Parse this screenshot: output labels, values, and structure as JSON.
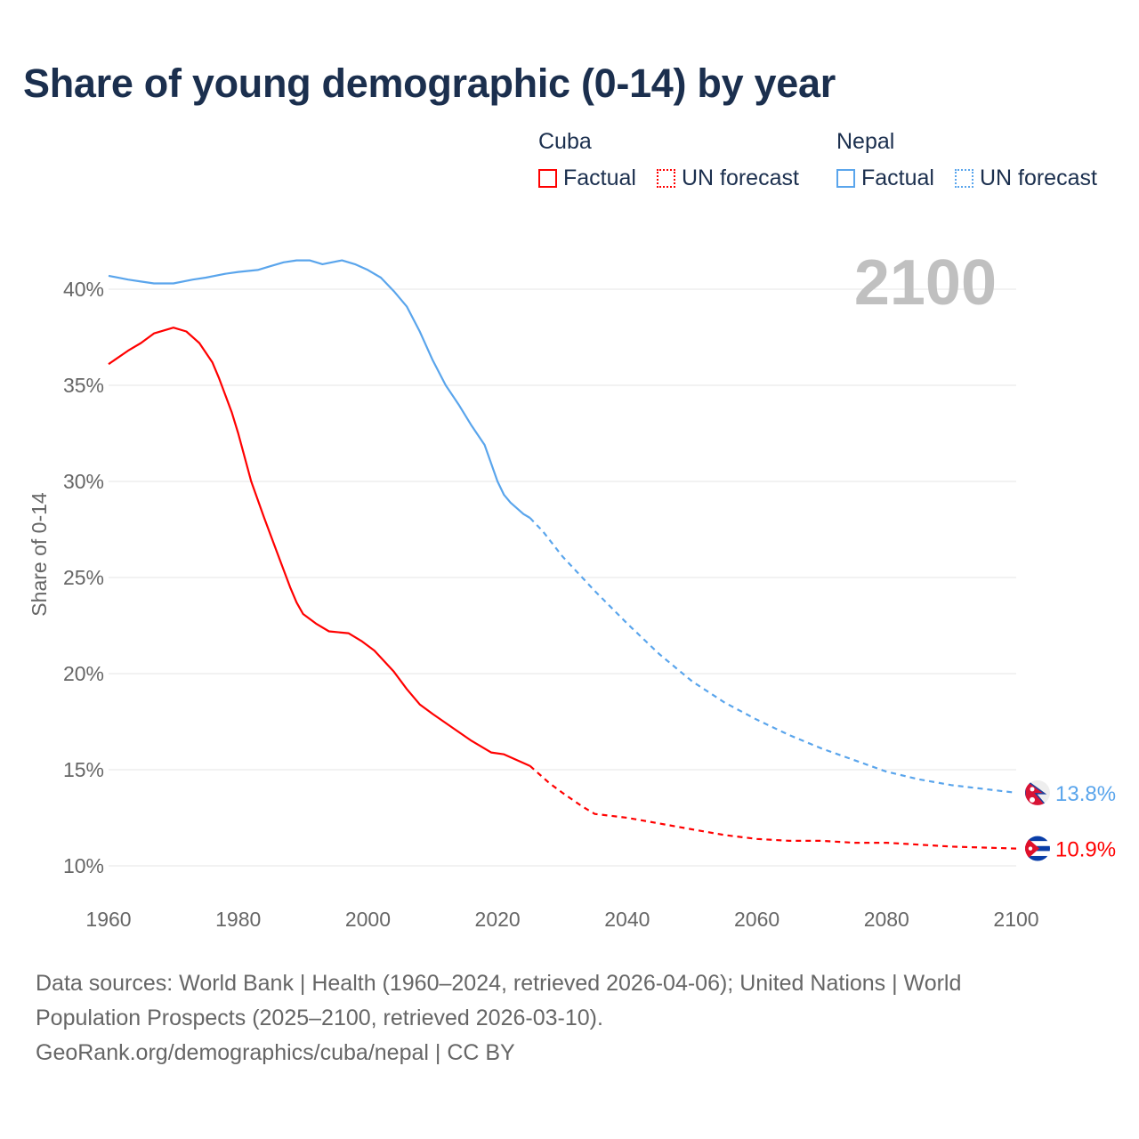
{
  "chart_data": {
    "type": "line",
    "title": "Share of young demographic (0-14) by year",
    "ylabel": "Share of 0-14",
    "xlabel": "",
    "xlim": [
      1960,
      2100
    ],
    "ylim": [
      10,
      42
    ],
    "x_ticks": [
      "1960",
      "1980",
      "2000",
      "2020",
      "2040",
      "2060",
      "2080",
      "2100"
    ],
    "y_ticks": [
      {
        "v": 10,
        "label": "10%"
      },
      {
        "v": 15,
        "label": "15%"
      },
      {
        "v": 20,
        "label": "20%"
      },
      {
        "v": 25,
        "label": "25%"
      },
      {
        "v": 30,
        "label": "30%"
      },
      {
        "v": 35,
        "label": "35%"
      },
      {
        "v": 40,
        "label": "40%"
      }
    ],
    "year_label": "2100",
    "grid": true,
    "legend": {
      "placement": "top-right",
      "groups": [
        {
          "country": "Cuba",
          "factual": "Factual",
          "forecast": "UN forecast",
          "color": "#ff0000"
        },
        {
          "country": "Nepal",
          "factual": "Factual",
          "forecast": "UN forecast",
          "color": "#5aa5ec"
        }
      ]
    },
    "series": [
      {
        "name": "Nepal",
        "color": "#5aa5ec",
        "end_label": "13.8%",
        "factual": [
          [
            1960,
            40.7
          ],
          [
            1963,
            40.5
          ],
          [
            1965,
            40.4
          ],
          [
            1967,
            40.3
          ],
          [
            1970,
            40.3
          ],
          [
            1973,
            40.5
          ],
          [
            1975,
            40.6
          ],
          [
            1978,
            40.8
          ],
          [
            1980,
            40.9
          ],
          [
            1983,
            41.0
          ],
          [
            1985,
            41.2
          ],
          [
            1987,
            41.4
          ],
          [
            1989,
            41.5
          ],
          [
            1991,
            41.5
          ],
          [
            1993,
            41.3
          ],
          [
            1996,
            41.5
          ],
          [
            1998,
            41.3
          ],
          [
            2000,
            41.0
          ],
          [
            2002,
            40.6
          ],
          [
            2004,
            39.9
          ],
          [
            2006,
            39.1
          ],
          [
            2008,
            37.8
          ],
          [
            2010,
            36.3
          ],
          [
            2012,
            35.0
          ],
          [
            2014,
            34.0
          ],
          [
            2016,
            32.9
          ],
          [
            2018,
            31.9
          ],
          [
            2020,
            30.0
          ],
          [
            2021,
            29.3
          ],
          [
            2022,
            28.9
          ],
          [
            2024,
            28.3
          ],
          [
            2025,
            28.1
          ]
        ],
        "forecast": [
          [
            2025,
            28.1
          ],
          [
            2027,
            27.4
          ],
          [
            2030,
            26.1
          ],
          [
            2035,
            24.3
          ],
          [
            2040,
            22.6
          ],
          [
            2045,
            21.0
          ],
          [
            2050,
            19.6
          ],
          [
            2055,
            18.5
          ],
          [
            2060,
            17.6
          ],
          [
            2065,
            16.8
          ],
          [
            2070,
            16.1
          ],
          [
            2075,
            15.5
          ],
          [
            2080,
            14.9
          ],
          [
            2085,
            14.5
          ],
          [
            2090,
            14.2
          ],
          [
            2095,
            14.0
          ],
          [
            2100,
            13.8
          ]
        ]
      },
      {
        "name": "Cuba",
        "color": "#ff0000",
        "end_label": "10.9%",
        "factual": [
          [
            1960,
            36.1
          ],
          [
            1963,
            36.8
          ],
          [
            1965,
            37.2
          ],
          [
            1967,
            37.7
          ],
          [
            1970,
            38.0
          ],
          [
            1972,
            37.8
          ],
          [
            1974,
            37.2
          ],
          [
            1976,
            36.2
          ],
          [
            1977,
            35.4
          ],
          [
            1979,
            33.6
          ],
          [
            1980,
            32.5
          ],
          [
            1982,
            30.0
          ],
          [
            1984,
            28.1
          ],
          [
            1986,
            26.3
          ],
          [
            1988,
            24.5
          ],
          [
            1989,
            23.7
          ],
          [
            1990,
            23.1
          ],
          [
            1992,
            22.6
          ],
          [
            1994,
            22.2
          ],
          [
            1997,
            22.1
          ],
          [
            1999,
            21.7
          ],
          [
            2001,
            21.2
          ],
          [
            2004,
            20.1
          ],
          [
            2006,
            19.2
          ],
          [
            2008,
            18.4
          ],
          [
            2010,
            17.9
          ],
          [
            2013,
            17.2
          ],
          [
            2016,
            16.5
          ],
          [
            2019,
            15.9
          ],
          [
            2021,
            15.8
          ],
          [
            2023,
            15.5
          ],
          [
            2025,
            15.2
          ]
        ],
        "forecast": [
          [
            2025,
            15.2
          ],
          [
            2028,
            14.3
          ],
          [
            2030,
            13.8
          ],
          [
            2033,
            13.1
          ],
          [
            2035,
            12.7
          ],
          [
            2040,
            12.5
          ],
          [
            2045,
            12.2
          ],
          [
            2050,
            11.9
          ],
          [
            2055,
            11.6
          ],
          [
            2060,
            11.4
          ],
          [
            2065,
            11.3
          ],
          [
            2070,
            11.3
          ],
          [
            2075,
            11.2
          ],
          [
            2080,
            11.2
          ],
          [
            2085,
            11.1
          ],
          [
            2090,
            11.0
          ],
          [
            2095,
            10.95
          ],
          [
            2100,
            10.9
          ]
        ]
      }
    ]
  },
  "footer": {
    "line1": "Data sources: World Bank | Health (1960–2024, retrieved 2026-04-06); United Nations | World Population Prospects (2025–2100, retrieved 2026-03-10).",
    "line2": "GeoRank.org/demographics/cuba/nepal | CC BY"
  }
}
